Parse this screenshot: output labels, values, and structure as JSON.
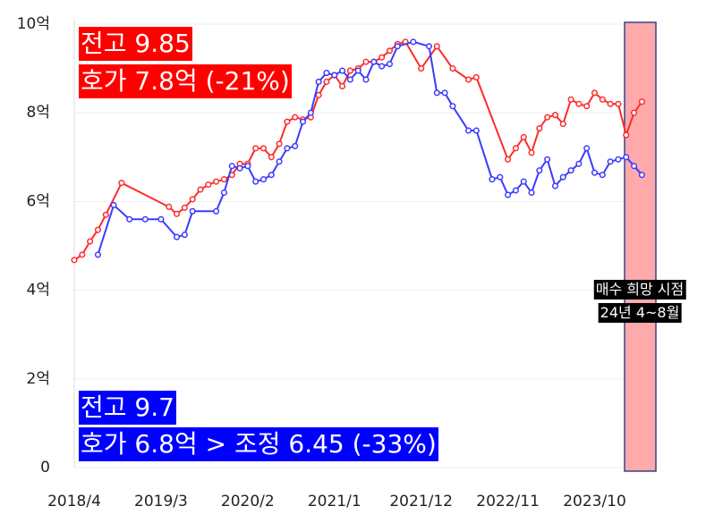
{
  "chart_data": {
    "type": "line",
    "annotations": [
      {
        "text": "전고 9.85",
        "color": "#ff0000"
      },
      {
        "text": "호가 7.8억 (-21%)",
        "color": "#ff0000"
      },
      {
        "text": "전고 9.7",
        "color": "#0000ff"
      },
      {
        "text": "호가 6.8억 > 조정 6.45 (-33%)",
        "color": "#0000ff"
      },
      {
        "text": "매수 희망 시점"
      },
      {
        "text": "24년 4~8월"
      }
    ],
    "xlim": [
      "2018/4",
      "2024/6"
    ],
    "xticks": [
      "2018/4",
      "2019/3",
      "2020/2",
      "2021/1",
      "2021/12",
      "2022/11",
      "2023/10"
    ],
    "ylim": [
      0,
      10
    ],
    "yticks": [
      0,
      {
        "value": 2,
        "label": "2억"
      },
      {
        "value": 4,
        "label": "4억"
      },
      {
        "value": 6,
        "label": "6억"
      },
      {
        "value": 8,
        "label": "8억"
      },
      {
        "value": 10,
        "label": "10억"
      }
    ],
    "grid": true,
    "series": [
      {
        "color": "#ff2a2a",
        "x": [
          "2018/4",
          "2018/5",
          "2018/6",
          "2018/7",
          "2018/8",
          "2018/10",
          "2019/4",
          "2019/5",
          "2019/6",
          "2019/7",
          "2019/8",
          "2019/9",
          "2019/10",
          "2019/11",
          "2019/12",
          "2020/1",
          "2020/2",
          "2020/3",
          "2020/4",
          "2020/5",
          "2020/6",
          "2020/7",
          "2020/8",
          "2020/9",
          "2020/10",
          "2020/11",
          "2020/12",
          "2021/1",
          "2021/2",
          "2021/3",
          "2021/4",
          "2021/5",
          "2021/6",
          "2021/7",
          "2021/8",
          "2021/9",
          "2021/10",
          "2021/12",
          "2022/2",
          "2022/4",
          "2022/6",
          "2022/7",
          "2022/11",
          "2022/12",
          "2023/1",
          "2023/2",
          "2023/3",
          "2023/4",
          "2023/5",
          "2023/6",
          "2023/7",
          "2023/8",
          "2023/9",
          "2023/10",
          "2023/11",
          "2023/12",
          "2024/1",
          "2024/2",
          "2024/3",
          "2024/4"
        ],
        "values": [
          4.68,
          4.8,
          5.1,
          5.36,
          5.7,
          6.42,
          5.88,
          5.72,
          5.86,
          6.05,
          6.27,
          6.38,
          6.45,
          6.5,
          6.6,
          6.85,
          6.85,
          7.2,
          7.2,
          7.0,
          7.3,
          7.8,
          7.9,
          7.85,
          7.9,
          8.4,
          8.7,
          8.85,
          8.6,
          8.95,
          9.0,
          9.15,
          9.15,
          9.25,
          9.4,
          9.55,
          9.6,
          9.0,
          9.5,
          9.0,
          8.75,
          8.8,
          6.95,
          7.2,
          7.45,
          7.1,
          7.65,
          7.9,
          7.95,
          7.75,
          8.3,
          8.2,
          8.15,
          8.45,
          8.3,
          8.2,
          8.2,
          7.5,
          8.0,
          8.25
        ]
      },
      {
        "color": "#3b3bff",
        "x": [
          "2018/7",
          "2018/9",
          "2018/11",
          "2019/1",
          "2019/3",
          "2019/5",
          "2019/6",
          "2019/7",
          "2019/10",
          "2019/11",
          "2019/12",
          "2020/1",
          "2020/2",
          "2020/3",
          "2020/4",
          "2020/5",
          "2020/6",
          "2020/7",
          "2020/8",
          "2020/9",
          "2020/10",
          "2020/11",
          "2020/12",
          "2021/1",
          "2021/2",
          "2021/3",
          "2021/4",
          "2021/5",
          "2021/6",
          "2021/7",
          "2021/8",
          "2021/9",
          "2021/11",
          "2022/1",
          "2022/2",
          "2022/3",
          "2022/4",
          "2022/6",
          "2022/7",
          "2022/9",
          "2022/10",
          "2022/11",
          "2022/12",
          "2023/1",
          "2023/2",
          "2023/3",
          "2023/4",
          "2023/5",
          "2023/6",
          "2023/7",
          "2023/8",
          "2023/9",
          "2023/10",
          "2023/11",
          "2023/12",
          "2024/1",
          "2024/2",
          "2024/3",
          "2024/4"
        ],
        "values": [
          4.8,
          5.92,
          5.6,
          5.6,
          5.6,
          5.2,
          5.25,
          5.78,
          5.78,
          6.2,
          6.8,
          6.75,
          6.8,
          6.45,
          6.5,
          6.6,
          6.9,
          7.2,
          7.25,
          7.8,
          8.0,
          8.7,
          8.9,
          8.85,
          8.95,
          8.75,
          8.95,
          8.75,
          9.15,
          9.05,
          9.1,
          9.5,
          9.6,
          9.5,
          8.45,
          8.45,
          8.15,
          7.6,
          7.6,
          6.5,
          6.55,
          6.15,
          6.25,
          6.45,
          6.2,
          6.7,
          6.95,
          6.35,
          6.55,
          6.7,
          6.85,
          7.2,
          6.65,
          6.6,
          6.9,
          6.95,
          7.0,
          6.8,
          6.6
        ]
      }
    ]
  }
}
